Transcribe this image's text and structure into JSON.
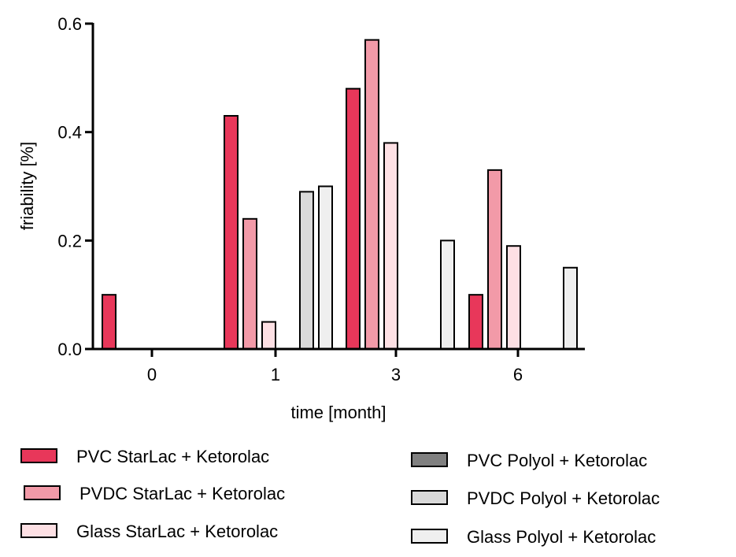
{
  "chart_data": {
    "type": "bar",
    "title": "",
    "xlabel": "time [month]",
    "ylabel": "friability [%]",
    "ylim": [
      0,
      0.6
    ],
    "yticks": [
      "0.0",
      "0.2",
      "0.4",
      "0.6"
    ],
    "categories": [
      "0",
      "1",
      "3",
      "6"
    ],
    "grid": false,
    "legend_position": "bottom",
    "series": [
      {
        "name": "PVC StarLac + Ketorolac",
        "color": "#e8375a",
        "values": [
          0.1,
          0.43,
          0.48,
          0.1
        ]
      },
      {
        "name": "PVDC StarLac + Ketorolac",
        "color": "#f29aa8",
        "values": [
          0.0,
          0.24,
          0.57,
          0.33
        ]
      },
      {
        "name": "Glass StarLac + Ketorolac",
        "color": "#fde0e4",
        "values": [
          0.0,
          0.05,
          0.38,
          0.19
        ]
      },
      {
        "name": "PVC Polyol + Ketorolac",
        "color": "#808080",
        "values": [
          0.0,
          0.0,
          0.0,
          0.0
        ]
      },
      {
        "name": "PVDC Polyol + Ketorolac",
        "color": "#d9d9d9",
        "values": [
          0.0,
          0.29,
          0.0,
          0.0
        ]
      },
      {
        "name": "Glass Polyol + Ketorolac",
        "color": "#efefef",
        "values": [
          0.0,
          0.3,
          0.2,
          0.15
        ]
      }
    ]
  }
}
